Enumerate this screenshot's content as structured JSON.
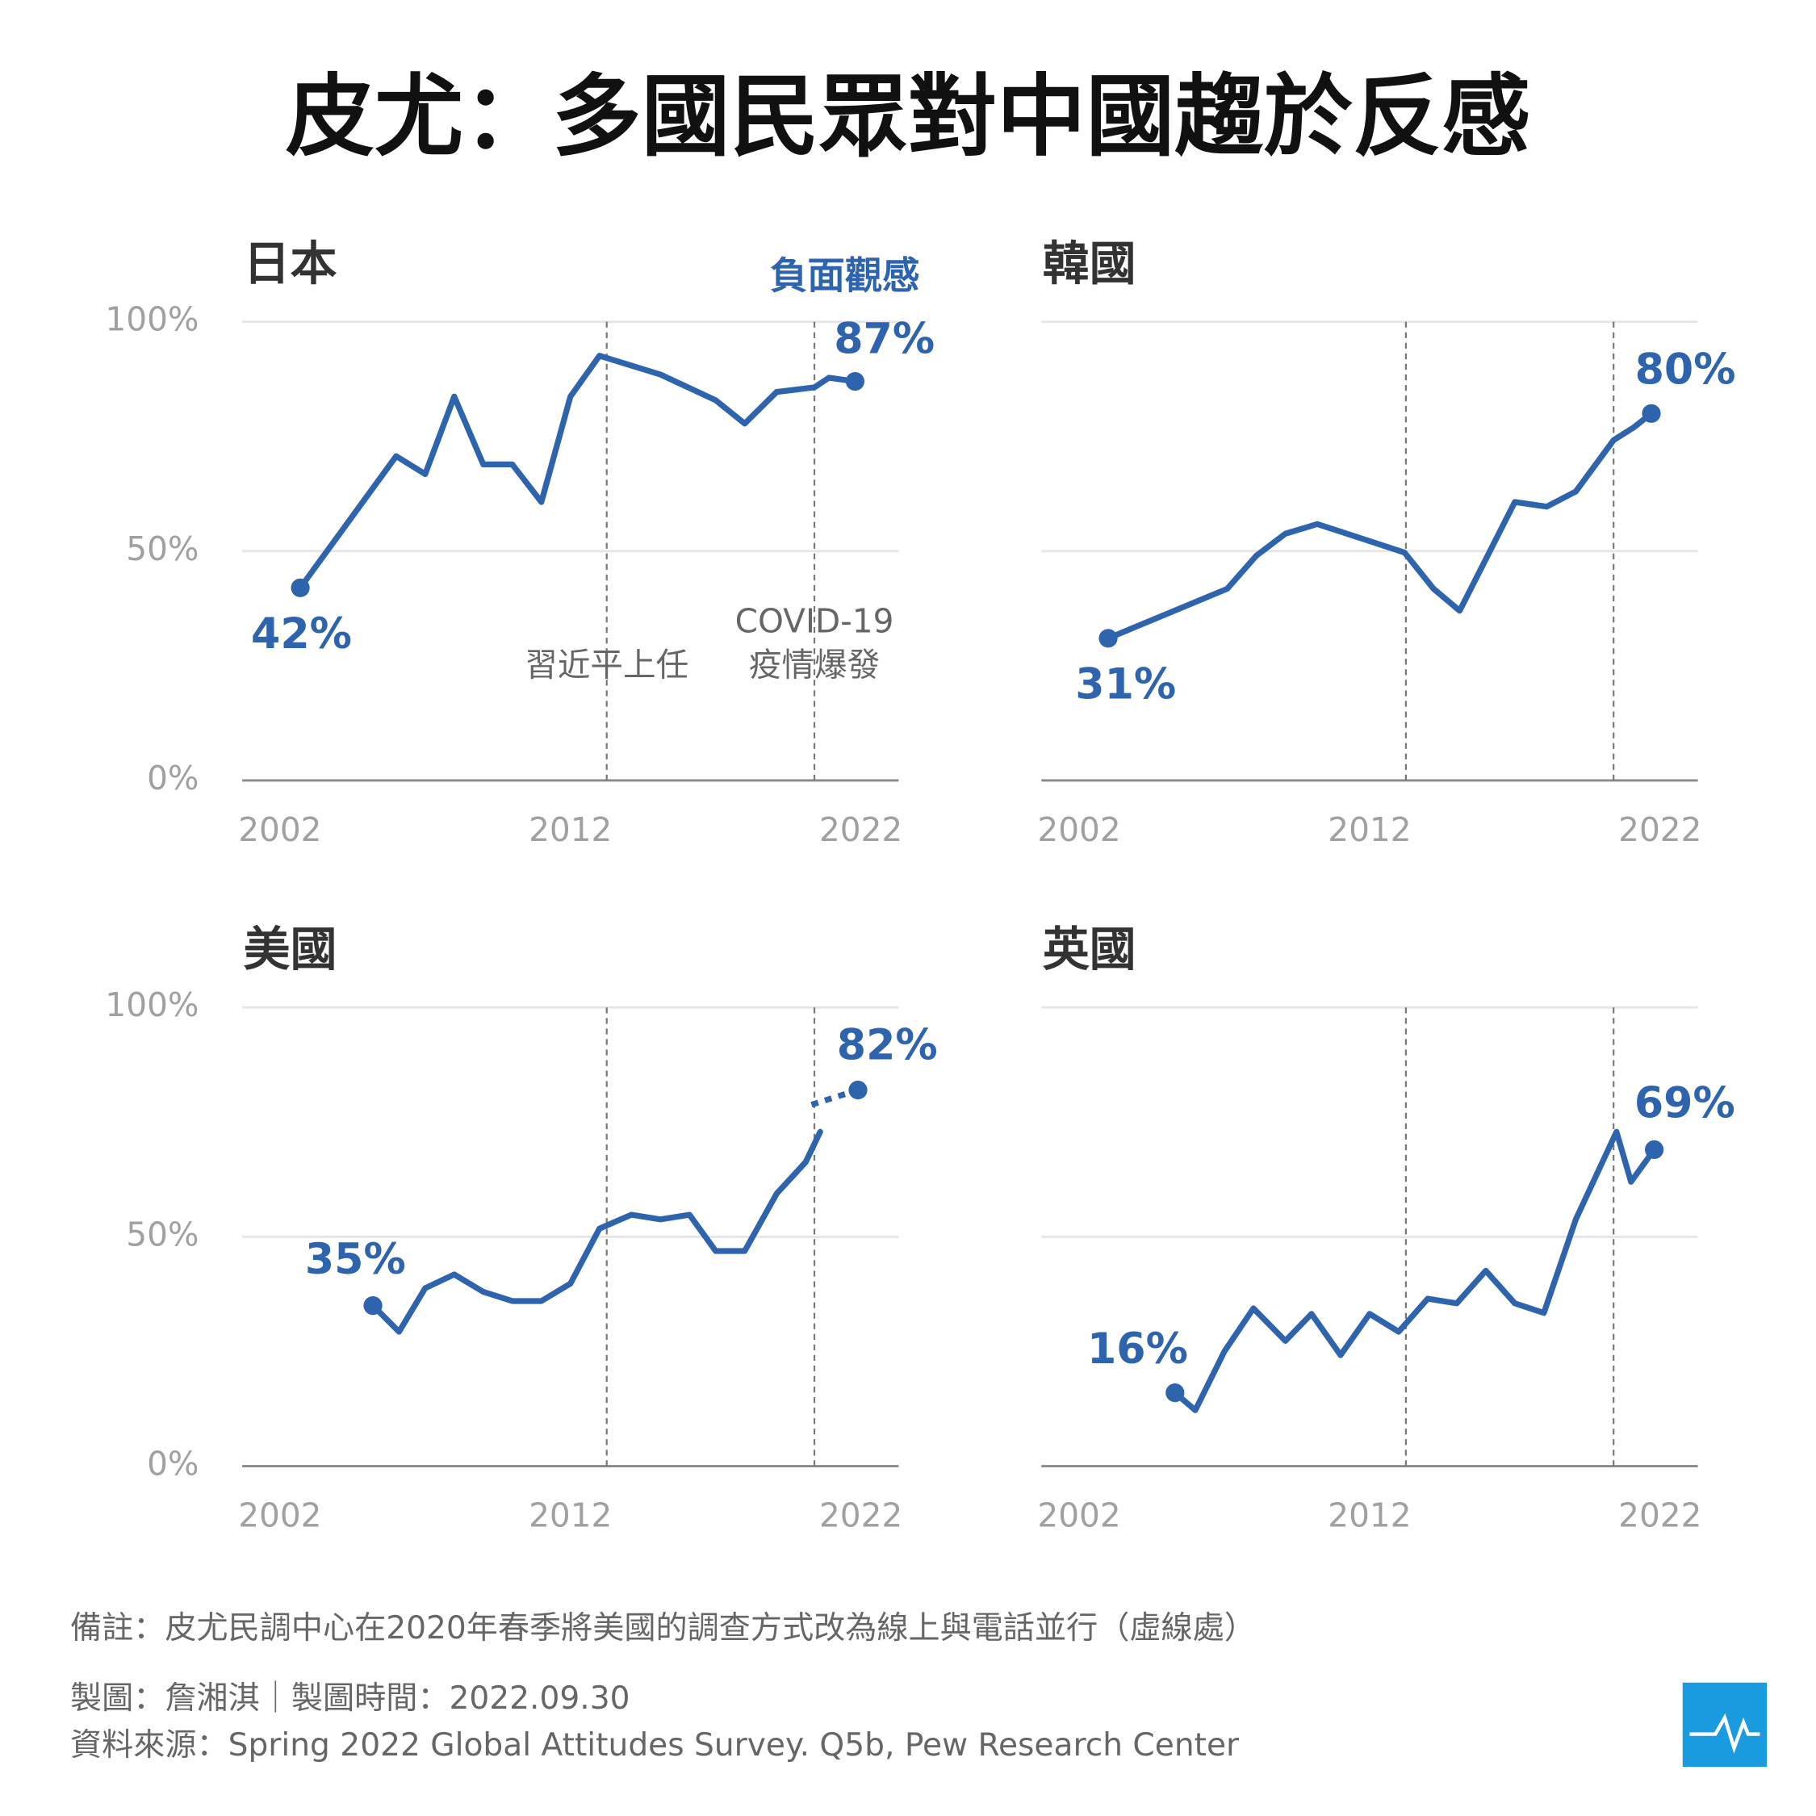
{
  "title": "皮尤：多國民眾對中國趨於反感",
  "chart_data": [
    {
      "type": "line",
      "title": "日本",
      "series_label": "負面觀感",
      "color": "#2e64ad",
      "x": [
        2002.7,
        2006.0,
        2007.0,
        2008.0,
        2009.0,
        2010.0,
        2011.0,
        2012.0,
        2013.0,
        2015.1,
        2017.0,
        2018.0,
        2019.1,
        2020.4,
        2020.9,
        2021.8
      ],
      "values": [
        42,
        70.7,
        66.8,
        83.7,
        68.9,
        68.9,
        60.7,
        83.7,
        92.6,
        88.5,
        82.9,
        77.8,
        84.7,
        85.7,
        87.8,
        87
      ],
      "value_labels": [
        "42%",
        null,
        null,
        null,
        null,
        null,
        null,
        null,
        null,
        null,
        null,
        null,
        null,
        null,
        null,
        "87%"
      ],
      "xlim": [
        2000.7,
        2023.3
      ],
      "xticks": [
        2002,
        2012,
        2022
      ],
      "ylim": [
        0,
        100
      ],
      "yticks": [
        {
          "value": 0,
          "label": "0%"
        },
        {
          "value": 50,
          "label": "50%"
        },
        {
          "value": 100,
          "label": "100%"
        }
      ],
      "events": [
        {
          "x": 2013.25,
          "label": [
            "習近平上任"
          ]
        },
        {
          "x": 2020.4,
          "label": [
            "COVID-19",
            "疫情爆發"
          ]
        }
      ]
    },
    {
      "type": "line",
      "title": "韓國",
      "color": "#2e64ad",
      "x": [
        2003.0,
        2007.1,
        2008.1,
        2009.1,
        2010.2,
        2013.2,
        2014.2,
        2015.1,
        2017.0,
        2018.1,
        2019.1,
        2020.4,
        2021.1,
        2021.7
      ],
      "values": [
        31,
        41.8,
        49.0,
        53.8,
        55.9,
        49.7,
        41.8,
        37.0,
        60.7,
        59.7,
        63.0,
        74.2,
        77.0,
        80
      ],
      "value_labels": [
        "31%",
        null,
        null,
        null,
        null,
        null,
        null,
        null,
        null,
        null,
        null,
        null,
        null,
        "80%"
      ],
      "xlim": [
        2000.7,
        2023.3
      ],
      "xticks": [
        2002,
        2012,
        2022
      ],
      "ylim": [
        0,
        100
      ],
      "yticks": [
        0,
        50,
        100
      ],
      "show_ytick_labels": false,
      "events": [
        {
          "x": 2013.25
        },
        {
          "x": 2020.4
        }
      ]
    },
    {
      "type": "line",
      "title": "美國",
      "color": "#2e64ad",
      "x": [
        2005.2,
        2006.1,
        2007.0,
        2008.0,
        2009.0,
        2010.0,
        2011.0,
        2012.0,
        2013.0,
        2014.1,
        2015.1,
        2016.1,
        2017.0,
        2018.0,
        2019.1,
        2020.1,
        2020.6
      ],
      "values": [
        35,
        29.3,
        38.8,
        41.8,
        38.0,
        36.0,
        36.0,
        39.8,
        51.8,
        54.8,
        53.8,
        54.8,
        46.9,
        46.9,
        59.4,
        66.3,
        72.9
      ],
      "value_labels": [
        "35%",
        null,
        null,
        null,
        null,
        null,
        null,
        null,
        null,
        null,
        null,
        null,
        null,
        null,
        null,
        null,
        null
      ],
      "dashed_x": [
        2020.3,
        2021.9
      ],
      "dashed_values": [
        78.8,
        82
      ],
      "dashed_value_labels": [
        null,
        "82%"
      ],
      "xlim": [
        2000.7,
        2023.3
      ],
      "xticks": [
        2002,
        2012,
        2022
      ],
      "ylim": [
        0,
        100
      ],
      "yticks": [
        {
          "value": 0,
          "label": "0%"
        },
        {
          "value": 50,
          "label": "50%"
        },
        {
          "value": 100,
          "label": "100%"
        }
      ],
      "events": [
        {
          "x": 2013.25
        },
        {
          "x": 2020.4
        }
      ]
    },
    {
      "type": "line",
      "title": "英國",
      "color": "#2e64ad",
      "x": [
        2005.3,
        2006.0,
        2007.0,
        2008.0,
        2009.1,
        2010.0,
        2011.0,
        2012.0,
        2013.0,
        2014.0,
        2015.0,
        2016.0,
        2017.0,
        2018.0,
        2019.1,
        2020.5,
        2021.0,
        2021.8
      ],
      "values": [
        16,
        12.2,
        25.0,
        34.4,
        27.3,
        33.2,
        24.2,
        33.2,
        29.3,
        36.5,
        35.5,
        42.6,
        35.5,
        33.4,
        53.8,
        72.9,
        62.0,
        69
      ],
      "value_labels": [
        "16%",
        null,
        null,
        null,
        null,
        null,
        null,
        null,
        null,
        null,
        null,
        null,
        null,
        null,
        null,
        null,
        null,
        "69%"
      ],
      "xlim": [
        2000.7,
        2023.3
      ],
      "xticks": [
        2002,
        2012,
        2022
      ],
      "ylim": [
        0,
        100
      ],
      "yticks": [
        0,
        50,
        100
      ],
      "show_ytick_labels": false,
      "events": [
        {
          "x": 2013.25
        },
        {
          "x": 2020.4
        }
      ]
    }
  ],
  "notes": [
    "備註：皮尤民調中心在2020年春季將美國的調查方式改為線上與電話並行（虛線處）",
    "製圖：詹湘淇｜製圖時間：2022.09.30",
    "資料來源：Spring 2022 Global Attitudes Survey. Q5b, Pew Research Center"
  ]
}
